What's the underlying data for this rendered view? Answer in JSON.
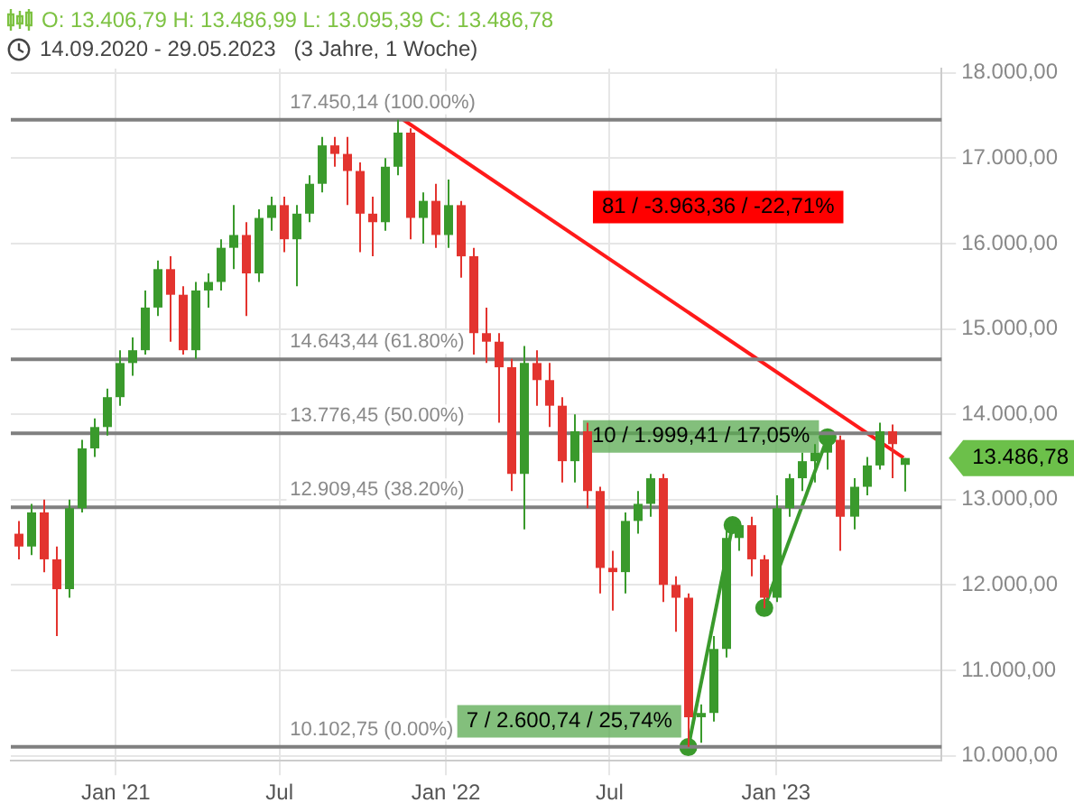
{
  "chart_data": {
    "type": "candlestick",
    "title": "O: 13.406,79  H: 13.486,99  L: 13.095,39  C: 13.486,78",
    "subtitle": "14.09.2020 - 29.05.2023   (3 Jahre, 1 Woche)",
    "x": [
      "2020-09-14",
      "2020-09-28",
      "2020-10-12",
      "2020-10-26",
      "2020-11-09",
      "2020-11-23",
      "2020-12-07",
      "2020-12-21",
      "2021-01-04",
      "2021-01-18",
      "2021-02-01",
      "2021-02-15",
      "2021-03-01",
      "2021-03-15",
      "2021-03-29",
      "2021-04-12",
      "2021-04-26",
      "2021-05-10",
      "2021-05-24",
      "2021-06-07",
      "2021-06-21",
      "2021-07-05",
      "2021-07-19",
      "2021-08-02",
      "2021-08-16",
      "2021-08-30",
      "2021-09-13",
      "2021-09-27",
      "2021-10-11",
      "2021-10-25",
      "2021-11-08",
      "2021-11-22",
      "2021-12-06",
      "2021-12-20",
      "2022-01-03",
      "2022-01-17",
      "2022-01-31",
      "2022-02-14",
      "2022-02-28",
      "2022-03-14",
      "2022-03-28",
      "2022-04-11",
      "2022-04-25",
      "2022-05-09",
      "2022-05-23",
      "2022-06-06",
      "2022-06-20",
      "2022-07-04",
      "2022-07-18",
      "2022-08-01",
      "2022-08-15",
      "2022-08-29",
      "2022-09-12",
      "2022-09-26",
      "2022-10-10",
      "2022-10-24",
      "2022-11-07",
      "2022-11-21",
      "2022-12-05",
      "2022-12-19",
      "2023-01-02",
      "2023-01-16",
      "2023-01-30",
      "2023-02-13",
      "2023-02-27",
      "2023-03-13",
      "2023-03-27",
      "2023-04-10",
      "2023-04-24",
      "2023-05-08",
      "2023-05-22"
    ],
    "ohlc": [
      [
        12600,
        12750,
        12300,
        12450
      ],
      [
        12450,
        12950,
        12350,
        12850
      ],
      [
        12850,
        13000,
        12150,
        12300
      ],
      [
        12300,
        12450,
        11400,
        11950
      ],
      [
        11950,
        13000,
        11850,
        12900
      ],
      [
        12900,
        13700,
        12850,
        13600
      ],
      [
        13600,
        13950,
        13500,
        13850
      ],
      [
        13850,
        14300,
        13750,
        14200
      ],
      [
        14200,
        14750,
        14100,
        14600
      ],
      [
        14600,
        14900,
        14450,
        14750
      ],
      [
        14750,
        15450,
        14700,
        15250
      ],
      [
        15250,
        15800,
        15150,
        15700
      ],
      [
        15700,
        15850,
        14850,
        15400
      ],
      [
        15400,
        15500,
        14700,
        14750
      ],
      [
        14750,
        15550,
        14650,
        15450
      ],
      [
        15450,
        15650,
        15250,
        15550
      ],
      [
        15550,
        16050,
        15450,
        15950
      ],
      [
        15950,
        16450,
        15700,
        16100
      ],
      [
        16100,
        16250,
        15150,
        15650
      ],
      [
        15650,
        16400,
        15550,
        16300
      ],
      [
        16300,
        16550,
        16150,
        16450
      ],
      [
        16450,
        16550,
        15900,
        16050
      ],
      [
        16050,
        16450,
        15500,
        16350
      ],
      [
        16350,
        16800,
        16250,
        16700
      ],
      [
        16700,
        17250,
        16600,
        17150
      ],
      [
        17150,
        17250,
        16900,
        17050
      ],
      [
        17050,
        17250,
        16450,
        16850
      ],
      [
        16850,
        16950,
        15900,
        16350
      ],
      [
        16350,
        16550,
        15850,
        16250
      ],
      [
        16250,
        17000,
        16150,
        16900
      ],
      [
        16900,
        17450,
        16800,
        17300
      ],
      [
        17300,
        17350,
        16050,
        16300
      ],
      [
        16300,
        16600,
        16000,
        16500
      ],
      [
        16500,
        16700,
        15950,
        16100
      ],
      [
        16100,
        16750,
        15950,
        16450
      ],
      [
        16450,
        16500,
        15600,
        15850
      ],
      [
        15850,
        15950,
        14700,
        14950
      ],
      [
        14950,
        15250,
        14600,
        14850
      ],
      [
        14850,
        14950,
        13900,
        14550
      ],
      [
        14550,
        14650,
        13100,
        13300
      ],
      [
        13300,
        14800,
        12650,
        14600
      ],
      [
        14600,
        14750,
        14100,
        14400
      ],
      [
        14400,
        14600,
        13850,
        14100
      ],
      [
        14100,
        14200,
        13200,
        13450
      ],
      [
        13450,
        14000,
        13200,
        13800
      ],
      [
        13800,
        13900,
        12900,
        13100
      ],
      [
        13100,
        13150,
        11900,
        12200
      ],
      [
        12200,
        12400,
        11700,
        12150
      ],
      [
        12150,
        12850,
        11900,
        12750
      ],
      [
        12750,
        13100,
        12600,
        12950
      ],
      [
        12950,
        13300,
        12800,
        13250
      ],
      [
        13250,
        13300,
        11800,
        12000
      ],
      [
        12000,
        12100,
        11450,
        11850
      ],
      [
        11850,
        11900,
        10103,
        10450
      ],
      [
        10450,
        10600,
        10150,
        10500
      ],
      [
        10500,
        11400,
        10400,
        11250
      ],
      [
        11250,
        12650,
        11150,
        12550
      ],
      [
        12550,
        12700,
        12400,
        12700
      ],
      [
        12700,
        12800,
        12100,
        12300
      ],
      [
        12300,
        12350,
        11727,
        11850
      ],
      [
        11850,
        13050,
        11800,
        12900
      ],
      [
        12900,
        13300,
        12800,
        13250
      ],
      [
        13250,
        13550,
        13100,
        13450
      ],
      [
        13450,
        13650,
        13200,
        13550
      ],
      [
        13550,
        13727,
        13350,
        13700
      ],
      [
        13700,
        13750,
        12400,
        12800
      ],
      [
        12800,
        13250,
        12650,
        13150
      ],
      [
        13150,
        13500,
        13050,
        13400
      ],
      [
        13400,
        13900,
        13350,
        13800
      ],
      [
        13800,
        13880,
        13250,
        13650
      ],
      [
        13406.79,
        13486.99,
        13095.39,
        13486.78
      ]
    ],
    "colors": [
      "#e3342f",
      "#3a9a2c",
      "#e3342f",
      "#e3342f",
      "#3a9a2c",
      "#3a9a2c",
      "#3a9a2c",
      "#3a9a2c",
      "#3a9a2c",
      "#3a9a2c",
      "#3a9a2c",
      "#3a9a2c",
      "#e3342f",
      "#e3342f",
      "#3a9a2c",
      "#3a9a2c",
      "#3a9a2c",
      "#3a9a2c",
      "#e3342f",
      "#3a9a2c",
      "#3a9a2c",
      "#e3342f",
      "#3a9a2c",
      "#3a9a2c",
      "#3a9a2c",
      "#e3342f",
      "#e3342f",
      "#e3342f",
      "#e3342f",
      "#3a9a2c",
      "#3a9a2c",
      "#e3342f",
      "#3a9a2c",
      "#e3342f",
      "#3a9a2c",
      "#e3342f",
      "#e3342f",
      "#e3342f",
      "#e3342f",
      "#e3342f",
      "#3a9a2c",
      "#e3342f",
      "#e3342f",
      "#e3342f",
      "#3a9a2c",
      "#e3342f",
      "#e3342f",
      "#e3342f",
      "#3a9a2c",
      "#3a9a2c",
      "#3a9a2c",
      "#e3342f",
      "#e3342f",
      "#e3342f",
      "#3a9a2c",
      "#3a9a2c",
      "#3a9a2c",
      "#3a9a2c",
      "#e3342f",
      "#e3342f",
      "#3a9a2c",
      "#3a9a2c",
      "#3a9a2c",
      "#3a9a2c",
      "#3a9a2c",
      "#e3342f",
      "#3a9a2c",
      "#3a9a2c",
      "#3a9a2c",
      "#e3342f",
      "#3a9a2c"
    ],
    "series": [
      {
        "type": "line",
        "x": [
          "2021-11-15",
          "2023-05-22"
        ],
        "values": [
          17450,
          13490
        ],
        "color": "#ff1a1a",
        "marker": "none"
      },
      {
        "type": "line",
        "x": [
          "2022-09-26",
          "2022-11-14"
        ],
        "values": [
          10100,
          12700
        ],
        "color": "#3a9a2c",
        "marker": "circle"
      },
      {
        "type": "line",
        "x": [
          "2022-12-19",
          "2023-02-27"
        ],
        "values": [
          11730,
          13730
        ],
        "color": "#3a9a2c",
        "marker": "circle"
      }
    ],
    "xlim": [
      "2020-09-07",
      "2023-07-03"
    ],
    "xticks": [
      {
        "value": "2021-01-01",
        "label": "Jan '21"
      },
      {
        "value": "2021-07-01",
        "label": "Jul"
      },
      {
        "value": "2022-01-01",
        "label": "Jan '22"
      },
      {
        "value": "2022-07-01",
        "label": "Jul"
      },
      {
        "value": "2023-01-01",
        "label": "Jan '23"
      }
    ],
    "ylim": [
      9940,
      18050
    ],
    "yticks": [
      {
        "value": 10000,
        "label": "10.000,00"
      },
      {
        "value": 11000,
        "label": "11.000,00"
      },
      {
        "value": 12000,
        "label": "12.000,00"
      },
      {
        "value": 13000,
        "label": "13.000,00"
      },
      {
        "value": 14000,
        "label": "14.000,00"
      },
      {
        "value": 15000,
        "label": "15.000,00"
      },
      {
        "value": 16000,
        "label": "16.000,00"
      },
      {
        "value": 17000,
        "label": "17.000,00"
      },
      {
        "value": 18000,
        "label": "18.000,00"
      }
    ],
    "ref_lines": [
      {
        "axis": "y",
        "value": 17450.14,
        "label": "17.450,14 (100.00%)",
        "color": "#808080"
      },
      {
        "axis": "y",
        "value": 14643.44,
        "label": "14.643,44 (61.80%)",
        "color": "#808080"
      },
      {
        "axis": "y",
        "value": 13776.45,
        "label": "13.776,45 (50.00%)",
        "color": "#808080"
      },
      {
        "axis": "y",
        "value": 12909.45,
        "label": "12.909,45 (38.20%)",
        "color": "#808080"
      },
      {
        "axis": "y",
        "value": 10102.75,
        "label": "10.102,75 (0.00%)",
        "color": "#808080"
      }
    ],
    "annotations": [
      "81 / -3.963,36 / -22,71%",
      {
        "text": "10 / 1.999,41 / 17,05%",
        "x": "2022-10-10",
        "y": 13740
      },
      "7 / 2.600,74 / 25,74%",
      "13.486,78"
    ],
    "grid": true,
    "legend": false
  }
}
